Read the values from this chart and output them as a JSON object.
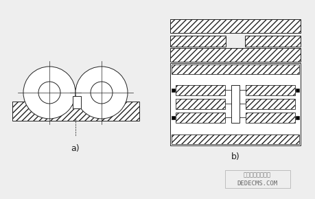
{
  "bg_color": "#eeeeee",
  "line_color": "#222222",
  "label_a": "a)",
  "label_b": "b)",
  "watermark_line1": "织梦内容管理系统",
  "watermark_line2": "DEDECMS.COM",
  "fig_width": 4.6,
  "fig_height": 2.9,
  "dpi": 100
}
